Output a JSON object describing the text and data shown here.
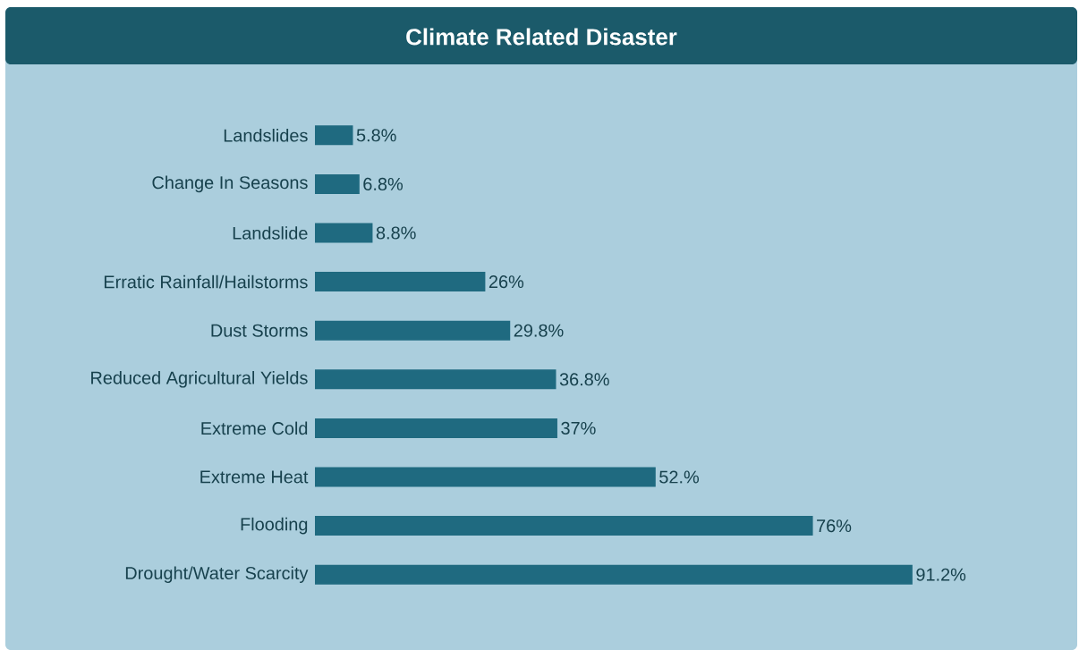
{
  "chart_data": {
    "type": "bar",
    "orientation": "horizontal",
    "title": "Climate Related Disaster",
    "categories": [
      "Landslides",
      "Change In Seasons",
      "Landslide",
      "Erratic Rainfall/Hailstorms",
      "Dust Storms",
      "Reduced Agricultural Yields",
      "Extreme Cold",
      "Extreme Heat",
      "Flooding",
      "Drought/Water Scarcity"
    ],
    "values": [
      5.8,
      6.8,
      8.8,
      26,
      29.8,
      36.8,
      37,
      52,
      76,
      91.2
    ],
    "value_labels": [
      "5.8%",
      "6.8%",
      "8.8%",
      "26%",
      "29.8%",
      "36.8%",
      "37%",
      "52.%",
      "76%",
      "91.2%"
    ],
    "color": "#1f6a80"
  }
}
